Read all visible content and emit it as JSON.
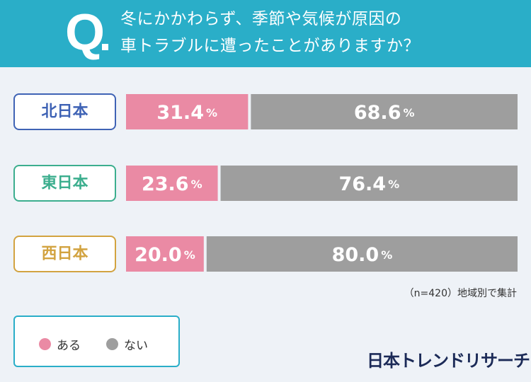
{
  "question": {
    "mark": "Q",
    "line1": "冬にかかわらず、季節や気候が原因の",
    "line2": "車トラブルに遭ったことがありますか？"
  },
  "chart_data": {
    "type": "bar",
    "orientation": "horizontal-stacked-100",
    "categories": [
      "北日本",
      "東日本",
      "西日本"
    ],
    "category_colors": [
      "#3f63b5",
      "#3cae8e",
      "#d2a340"
    ],
    "series": [
      {
        "name": "ある",
        "values": [
          31.4,
          23.6,
          20.0
        ],
        "color": "#ea8aa4"
      },
      {
        "name": "ない",
        "values": [
          68.6,
          76.4,
          80.0
        ],
        "color": "#9e9e9e"
      }
    ],
    "value_suffix": "%",
    "legend_position": "bottom-left"
  },
  "note": "（n=420）地域別で集計",
  "brand": "日本トレンドリサーチ"
}
